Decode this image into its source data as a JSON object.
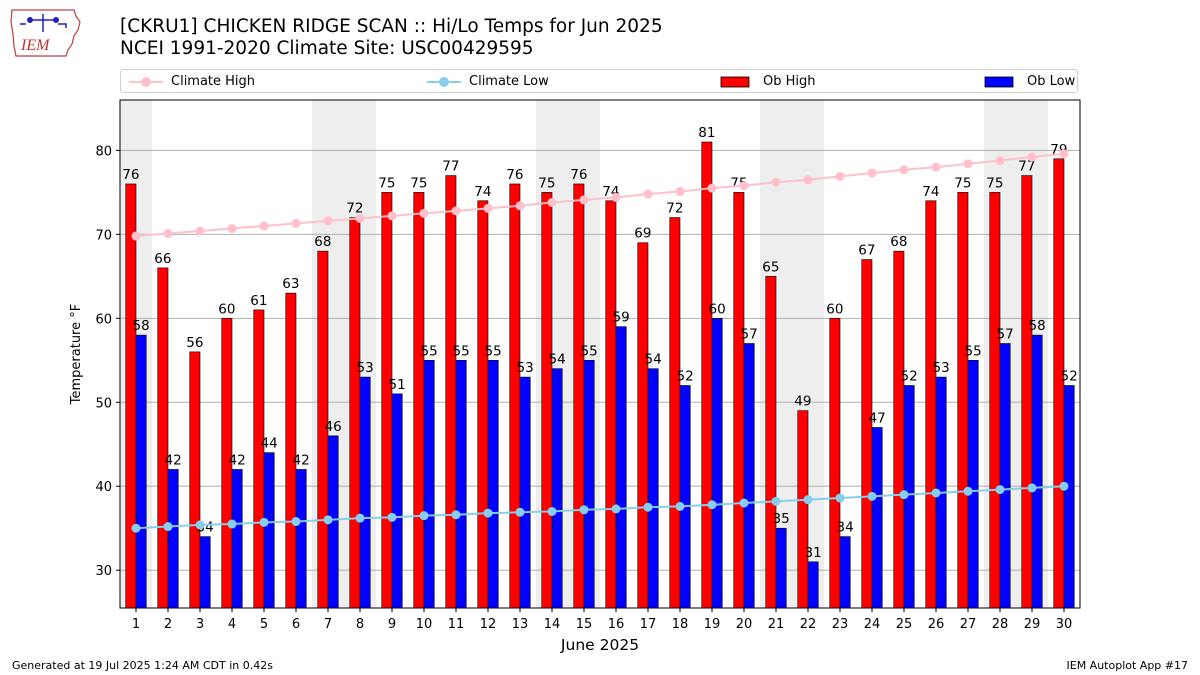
{
  "header": {
    "title_line1": "[CKRU1] CHICKEN RIDGE SCAN :: Hi/Lo Temps for Jun 2025",
    "title_line2": "NCEI 1991-2020 Climate Site: USC00429595"
  },
  "logo": {
    "text": "IEM"
  },
  "footer": {
    "generated": "Generated at 19 Jul 2025 1:24 AM CDT in 0.42s",
    "app": "IEM Autoplot App #17"
  },
  "legend": {
    "climate_high": "Climate High",
    "climate_low": "Climate Low",
    "ob_high": "Ob High",
    "ob_low": "Ob Low"
  },
  "colors": {
    "ob_high": "#ff0000",
    "ob_low": "#0000ff",
    "climate_high": "#ffc0cb",
    "climate_low": "#87ceeb",
    "weekend_shade": "#eeeeee",
    "grid": "#b0b0b0"
  },
  "chart_data": {
    "type": "bar",
    "xlabel": "June 2025",
    "ylabel": "Temperature °F",
    "ylim": [
      25.5,
      86
    ],
    "yticks": [
      30,
      40,
      50,
      60,
      70,
      80
    ],
    "grid": "horizontal",
    "legend_position": "top",
    "categories": [
      "1",
      "2",
      "3",
      "4",
      "5",
      "6",
      "7",
      "8",
      "9",
      "10",
      "11",
      "12",
      "13",
      "14",
      "15",
      "16",
      "17",
      "18",
      "19",
      "20",
      "21",
      "22",
      "23",
      "24",
      "25",
      "26",
      "27",
      "28",
      "29",
      "30"
    ],
    "weekend_days": [
      1,
      7,
      8,
      14,
      15,
      21,
      22,
      28,
      29
    ],
    "series": [
      {
        "name": "Ob High",
        "kind": "bar",
        "values": [
          76,
          66,
          56,
          60,
          61,
          63,
          68,
          72,
          75,
          75,
          77,
          74,
          76,
          75,
          76,
          74,
          69,
          72,
          81,
          75,
          65,
          49,
          60,
          67,
          68,
          74,
          75,
          75,
          77,
          79
        ]
      },
      {
        "name": "Ob Low",
        "kind": "bar",
        "values": [
          58,
          42,
          34,
          42,
          44,
          42,
          46,
          53,
          51,
          55,
          55,
          55,
          53,
          54,
          55,
          59,
          54,
          52,
          60,
          57,
          35,
          31,
          34,
          47,
          52,
          53,
          55,
          57,
          58,
          52
        ]
      },
      {
        "name": "Climate High",
        "kind": "line",
        "values": [
          69.8,
          70.1,
          70.4,
          70.7,
          71.0,
          71.3,
          71.6,
          71.9,
          72.2,
          72.5,
          72.8,
          73.1,
          73.4,
          73.8,
          74.1,
          74.4,
          74.8,
          75.1,
          75.5,
          75.8,
          76.2,
          76.5,
          76.9,
          77.3,
          77.7,
          78.0,
          78.4,
          78.8,
          79.2,
          79.6
        ]
      },
      {
        "name": "Climate Low",
        "kind": "line",
        "values": [
          35.0,
          35.2,
          35.4,
          35.5,
          35.7,
          35.8,
          36.0,
          36.2,
          36.3,
          36.5,
          36.6,
          36.8,
          36.9,
          37.0,
          37.2,
          37.3,
          37.5,
          37.6,
          37.8,
          38.0,
          38.2,
          38.4,
          38.6,
          38.8,
          39.0,
          39.2,
          39.4,
          39.6,
          39.8,
          40.0
        ]
      }
    ]
  }
}
